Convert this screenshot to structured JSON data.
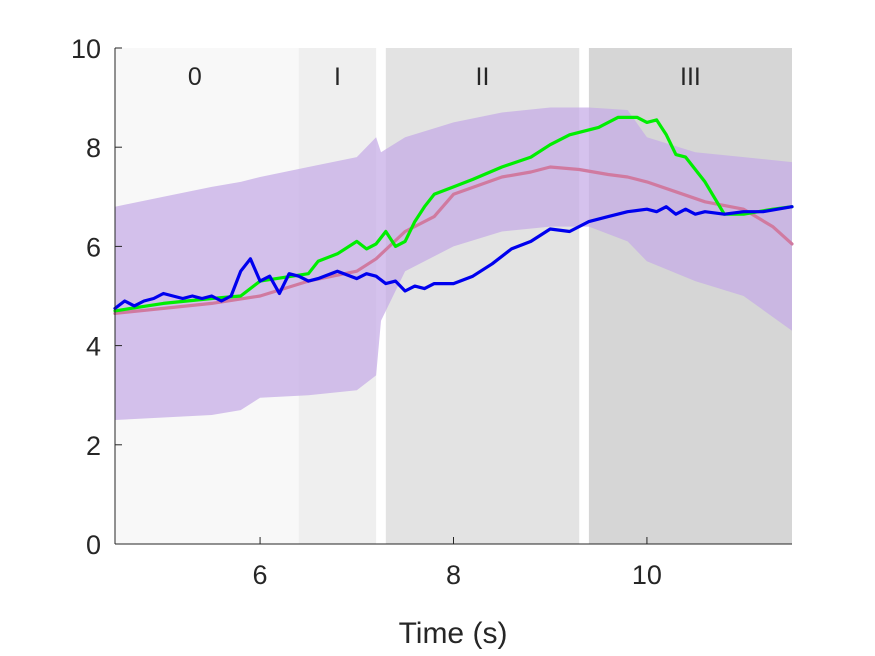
{
  "chart_data": {
    "type": "line",
    "xlabel": "Time (s)",
    "ylabel": "",
    "title": "",
    "xlim": [
      4.5,
      11.5
    ],
    "ylim": [
      0,
      10
    ],
    "xticks": [
      6,
      8,
      10
    ],
    "yticks": [
      0,
      2,
      4,
      6,
      8,
      10
    ],
    "tick_labels_x": [
      "6",
      "8",
      "10"
    ],
    "tick_labels_y": [
      "0",
      "2",
      "4",
      "6",
      "8",
      "10"
    ],
    "grid": false,
    "phases": [
      {
        "label": "0",
        "x_start": 4.5,
        "x_end": 6.4,
        "color": "#f8f8f8"
      },
      {
        "label": "I",
        "x_start": 6.4,
        "x_end": 7.2,
        "color": "#efefef"
      },
      {
        "label": "II",
        "x_start": 7.3,
        "x_end": 9.3,
        "color": "#e3e3e3"
      },
      {
        "label": "III",
        "x_start": 9.4,
        "x_end": 11.5,
        "color": "#d6d6d6"
      }
    ],
    "band": {
      "color": "#c5aae6",
      "opacity": 0.72,
      "x": [
        4.5,
        5.0,
        5.5,
        5.8,
        6.0,
        6.5,
        7.0,
        7.2,
        7.25,
        7.5,
        8.0,
        8.5,
        9.0,
        9.4,
        9.8,
        10.0,
        10.5,
        11.0,
        11.5
      ],
      "upper": [
        6.8,
        7.0,
        7.2,
        7.3,
        7.4,
        7.6,
        7.8,
        8.2,
        7.9,
        8.2,
        8.5,
        8.7,
        8.8,
        8.8,
        8.75,
        8.2,
        7.9,
        7.8,
        7.7
      ],
      "lower": [
        2.5,
        2.55,
        2.6,
        2.7,
        2.95,
        3.0,
        3.1,
        3.4,
        4.5,
        5.5,
        6.0,
        6.3,
        6.4,
        6.4,
        6.1,
        5.7,
        5.3,
        5.0,
        4.3
      ]
    },
    "series": [
      {
        "color": "#d07aa0",
        "x": [
          4.5,
          5.0,
          5.5,
          6.0,
          6.5,
          7.0,
          7.2,
          7.5,
          7.8,
          8.0,
          8.5,
          8.8,
          9.0,
          9.3,
          9.6,
          9.8,
          10.0,
          10.3,
          10.6,
          11.0,
          11.3,
          11.5
        ],
        "values": [
          4.65,
          4.75,
          4.85,
          5.0,
          5.3,
          5.5,
          5.75,
          6.3,
          6.6,
          7.05,
          7.4,
          7.5,
          7.6,
          7.55,
          7.45,
          7.4,
          7.3,
          7.1,
          6.9,
          6.75,
          6.4,
          6.05
        ]
      },
      {
        "color": "#00ee00",
        "x": [
          4.5,
          5.0,
          5.5,
          5.8,
          6.0,
          6.5,
          6.6,
          6.8,
          7.0,
          7.1,
          7.2,
          7.3,
          7.4,
          7.5,
          7.6,
          7.7,
          7.8,
          8.0,
          8.2,
          8.5,
          8.8,
          9.0,
          9.2,
          9.5,
          9.7,
          9.9,
          10.0,
          10.1,
          10.2,
          10.3,
          10.4,
          10.6,
          10.8,
          11.0,
          11.3,
          11.5
        ],
        "values": [
          4.7,
          4.85,
          4.95,
          5.0,
          5.3,
          5.45,
          5.7,
          5.85,
          6.1,
          5.95,
          6.05,
          6.3,
          6.0,
          6.1,
          6.5,
          6.8,
          7.05,
          7.2,
          7.35,
          7.6,
          7.8,
          8.05,
          8.25,
          8.4,
          8.6,
          8.6,
          8.5,
          8.55,
          8.25,
          7.85,
          7.8,
          7.3,
          6.65,
          6.65,
          6.75,
          6.8
        ]
      },
      {
        "color": "#0000ee",
        "x": [
          4.5,
          4.6,
          4.7,
          4.8,
          4.9,
          5.0,
          5.1,
          5.2,
          5.3,
          5.4,
          5.5,
          5.6,
          5.7,
          5.8,
          5.9,
          6.0,
          6.1,
          6.2,
          6.3,
          6.4,
          6.5,
          6.6,
          6.8,
          7.0,
          7.1,
          7.2,
          7.3,
          7.4,
          7.5,
          7.6,
          7.7,
          7.8,
          8.0,
          8.2,
          8.4,
          8.6,
          8.8,
          9.0,
          9.2,
          9.4,
          9.6,
          9.8,
          10.0,
          10.1,
          10.2,
          10.3,
          10.4,
          10.5,
          10.6,
          10.8,
          11.0,
          11.2,
          11.5
        ],
        "values": [
          4.75,
          4.9,
          4.8,
          4.9,
          4.95,
          5.05,
          5.0,
          4.95,
          5.0,
          4.95,
          5.0,
          4.9,
          5.0,
          5.5,
          5.75,
          5.3,
          5.4,
          5.05,
          5.45,
          5.4,
          5.3,
          5.35,
          5.5,
          5.35,
          5.45,
          5.4,
          5.25,
          5.3,
          5.1,
          5.2,
          5.15,
          5.25,
          5.25,
          5.4,
          5.65,
          5.95,
          6.1,
          6.35,
          6.3,
          6.5,
          6.6,
          6.7,
          6.75,
          6.7,
          6.8,
          6.65,
          6.75,
          6.65,
          6.7,
          6.65,
          6.7,
          6.7,
          6.8
        ]
      }
    ]
  }
}
